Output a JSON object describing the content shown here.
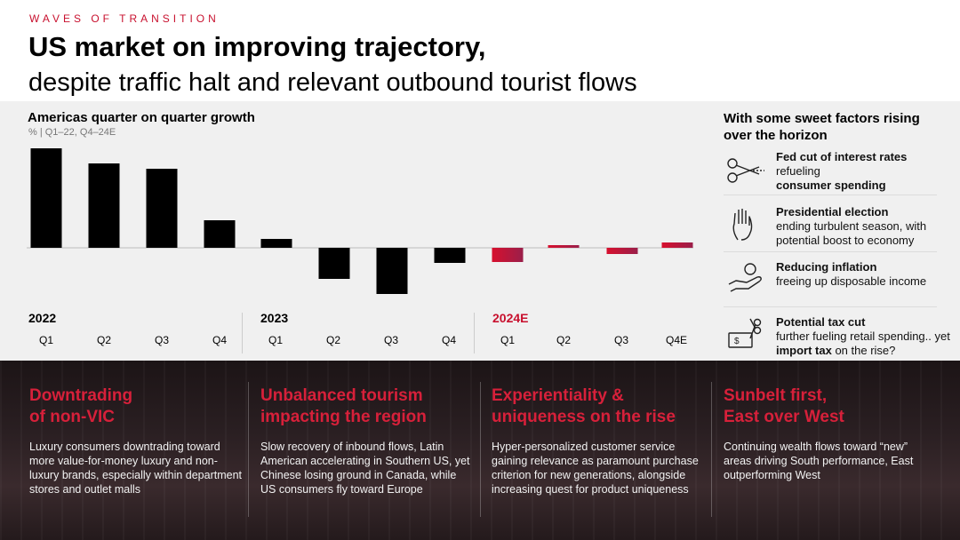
{
  "header": {
    "kicker": "WAVES OF TRANSITION",
    "title_line1": "US market on improving trajectory,",
    "title_line2": "despite traffic halt and relevant outbound tourist flows"
  },
  "colors": {
    "accent": "#c8102e",
    "bar": "#000000",
    "dark_bg": "#241a1c"
  },
  "chart": {
    "title": "Americas quarter on quarter growth",
    "subtitle": "% | Q1–22, Q4–24E",
    "years": [
      "2022",
      "2023",
      "2024E"
    ],
    "quarters": [
      "Q1",
      "Q2",
      "Q3",
      "Q4",
      "Q1",
      "Q2",
      "Q3",
      "Q4",
      "Q1",
      "Q2",
      "Q3",
      "Q4E"
    ]
  },
  "chart_data": {
    "type": "bar",
    "categories": [
      "Q1-22",
      "Q2-22",
      "Q3-22",
      "Q4-22",
      "Q1-23",
      "Q2-23",
      "Q3-23",
      "Q4-23",
      "Q1-24E",
      "Q2-24E",
      "Q3-24E",
      "Q4-24E"
    ],
    "values": [
      112,
      95,
      89,
      31,
      10,
      -35,
      -52,
      -17,
      -16,
      3,
      -7,
      6
    ],
    "estimated_from": 8,
    "title": "Americas quarter on quarter growth",
    "subtitle": "% | Q1–22, Q4–24E"
  },
  "right_panel": {
    "title": "With some sweet factors rising over the horizon",
    "factors": [
      {
        "icon": "scissors-icon",
        "bold": "Fed cut of interest rates",
        "rest": " refueling ",
        "bold2": "consumer spending"
      },
      {
        "icon": "raised-hand-icon",
        "bold": "Presidential election",
        "rest": "ending turbulent season, with potential boost to economy"
      },
      {
        "icon": "hand-coin-icon",
        "bold": "Reducing inflation",
        "rest": "freeing up disposable income"
      },
      {
        "icon": "dollar-scissors-icon",
        "bold": "Potential tax cut",
        "rest": "further fueling retail spending.. yet ",
        "bold2": "import tax",
        "rest2": " on the rise?"
      }
    ]
  },
  "columns": [
    {
      "head1": "Downtrading",
      "head2": "of non-VIC",
      "body": "Luxury consumers downtrading toward more value-for-money luxury and non-luxury brands, especially within department stores and outlet malls"
    },
    {
      "head1": "Unbalanced tourism",
      "head2": "impacting the region",
      "body": "Slow recovery of inbound flows, Latin American accelerating in Southern US, yet Chinese losing ground in Canada, while US consumers fly toward Europe"
    },
    {
      "head1": "Experientiality &",
      "head2": "uniqueness on the rise",
      "body": "Hyper-personalized customer service gaining relevance as paramount purchase criterion for new generations, alongside increasing quest for product uniqueness"
    },
    {
      "head1": "Sunbelt first,",
      "head2": "East over West",
      "body": "Continuing wealth flows toward “new” areas driving South performance, East outperforming West"
    }
  ]
}
